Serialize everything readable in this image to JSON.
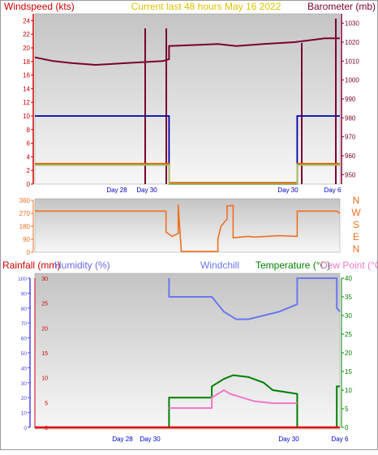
{
  "header": {
    "left_label": "Windspeed (kts)",
    "center_label": "Current last 48 hours May 16 2022",
    "right_label": "Barometer (mb)"
  },
  "colors": {
    "wind_axis": "#cc0000",
    "baro_axis": "#7a0030",
    "title": "#e0c000",
    "plot_bg_top": "#c9c9c9",
    "plot_bg_bottom": "#f5f5f5",
    "x_tick_label": "#0000cc",
    "dir_color": "#f07020",
    "rain": "#e00000",
    "humidity": "#4a4ae8",
    "windchill": "#6a78f0",
    "temperature": "#008000",
    "dewpoint": "#f078c8"
  },
  "chart_data": [
    {
      "type": "line",
      "x_tick_labels": [
        "Day 28",
        "Day 30",
        "Day 30",
        "Day 6"
      ],
      "y_left": {
        "label": "Windspeed (kts)",
        "ticks": [
          "0",
          "2",
          "4",
          "6",
          "8",
          "10",
          "12",
          "14",
          "16",
          "18",
          "20",
          "22",
          "24"
        ],
        "range": [
          0,
          25
        ]
      },
      "y_right": {
        "label": "Barometer (mb)",
        "ticks": [
          "950",
          "960",
          "970",
          "980",
          "990",
          "1000",
          "1010",
          "1020",
          "1030"
        ],
        "range": [
          945,
          1035
        ]
      },
      "series": [
        {
          "key": "barometer",
          "color": "#7a0030",
          "axis": "right",
          "points": [
            [
              0,
              1012
            ],
            [
              0.06,
              1010
            ],
            [
              0.12,
              1009
            ],
            [
              0.2,
              1008
            ],
            [
              0.3,
              1009
            ],
            [
              0.42,
              1010
            ],
            [
              0.44,
              1011
            ],
            [
              0.44,
              1018
            ],
            [
              0.6,
              1019
            ],
            [
              0.66,
              1018
            ],
            [
              0.75,
              1019
            ],
            [
              0.85,
              1020
            ],
            [
              0.95,
              1022
            ],
            [
              1.0,
              1022
            ]
          ]
        },
        {
          "key": "wind_blue",
          "color": "#0000aa",
          "axis": "left",
          "points": [
            [
              0,
              10
            ],
            [
              0.44,
              10
            ],
            [
              0.44,
              0
            ],
            [
              0.86,
              0
            ],
            [
              0.86,
              10
            ],
            [
              1.0,
              10
            ]
          ]
        },
        {
          "key": "wind_red",
          "color": "#e06000",
          "axis": "left",
          "points": [
            [
              0,
              3
            ],
            [
              0.44,
              3
            ],
            [
              0.44,
              0.2
            ],
            [
              0.86,
              0.2
            ],
            [
              0.86,
              3
            ],
            [
              1.0,
              3
            ]
          ]
        },
        {
          "key": "wind_green",
          "color": "#a0c060",
          "axis": "left",
          "points": [
            [
              0,
              2.8
            ],
            [
              0.44,
              2.8
            ],
            [
              0.44,
              0
            ],
            [
              0.86,
              0
            ],
            [
              0.86,
              2.8
            ],
            [
              1.0,
              2.8
            ]
          ]
        }
      ]
    },
    {
      "type": "line",
      "y_left": {
        "ticks": [
          "0",
          "90",
          "180",
          "270",
          "360"
        ],
        "range": [
          0,
          360
        ]
      },
      "y_right_labels": [
        "N",
        "W",
        "S",
        "E",
        "N"
      ],
      "series": [
        {
          "key": "wind_direction",
          "color": "#f07020",
          "points": [
            [
              0,
              285
            ],
            [
              0.43,
              285
            ],
            [
              0.43,
              140
            ],
            [
              0.45,
              110
            ],
            [
              0.47,
              130
            ],
            [
              0.47,
              330
            ],
            [
              0.48,
              5
            ],
            [
              0.51,
              5
            ],
            [
              0.55,
              5
            ],
            [
              0.6,
              5
            ],
            [
              0.6,
              90
            ],
            [
              0.61,
              180
            ],
            [
              0.63,
              230
            ],
            [
              0.63,
              320
            ],
            [
              0.65,
              325
            ],
            [
              0.65,
              100
            ],
            [
              0.7,
              110
            ],
            [
              0.72,
              105
            ],
            [
              0.8,
              115
            ],
            [
              0.86,
              110
            ],
            [
              0.86,
              285
            ],
            [
              0.99,
              285
            ],
            [
              1.0,
              270
            ]
          ]
        }
      ]
    },
    {
      "type": "line",
      "x_tick_labels": [
        "Day 28",
        "Day 30",
        "Day 30",
        "Day 6"
      ],
      "labels": {
        "rainfall": "Rainfall (mm)",
        "humidity": "Humidity (%)",
        "windchill": "Windchill",
        "temperature": "Temperature (°C)",
        "dewpoint": "Dew Point (°C)"
      },
      "y_left_rain": {
        "ticks": [
          "0",
          "5",
          "10",
          "15",
          "20",
          "25",
          "30"
        ],
        "range": [
          0,
          30
        ]
      },
      "y_left_hum": {
        "ticks": [
          "0",
          "10",
          "20",
          "30",
          "40",
          "50",
          "60",
          "70",
          "80",
          "90",
          "100"
        ],
        "range": [
          0,
          100
        ]
      },
      "y_right_temp": {
        "ticks": [
          "0",
          "5",
          "10",
          "15",
          "20",
          "25",
          "30",
          "35",
          "40"
        ],
        "range": [
          0,
          40
        ]
      },
      "series": [
        {
          "key": "windchill",
          "color": "#6a78f0",
          "points": [
            [
              0.44,
              40
            ],
            [
              0.44,
              35
            ],
            [
              0.58,
              35
            ],
            [
              0.62,
              31
            ],
            [
              0.66,
              29
            ],
            [
              0.7,
              29
            ],
            [
              0.75,
              30
            ],
            [
              0.8,
              31
            ],
            [
              0.86,
              33
            ],
            [
              0.86,
              40
            ],
            [
              0.99,
              40
            ],
            [
              0.99,
              32
            ],
            [
              1.0,
              31
            ]
          ]
        },
        {
          "key": "temperature",
          "color": "#008000",
          "points": [
            [
              0.44,
              0
            ],
            [
              0.44,
              8
            ],
            [
              0.58,
              8
            ],
            [
              0.58,
              11
            ],
            [
              0.62,
              13
            ],
            [
              0.65,
              14
            ],
            [
              0.7,
              13.5
            ],
            [
              0.75,
              12
            ],
            [
              0.78,
              10
            ],
            [
              0.86,
              9
            ],
            [
              0.86,
              0
            ],
            [
              0.99,
              0
            ],
            [
              0.99,
              11
            ],
            [
              1.0,
              11
            ]
          ]
        },
        {
          "key": "dewpoint",
          "color": "#f078c8",
          "points": [
            [
              0.44,
              5.2
            ],
            [
              0.58,
              5.2
            ],
            [
              0.58,
              8
            ],
            [
              0.62,
              10
            ],
            [
              0.64,
              9
            ],
            [
              0.68,
              8
            ],
            [
              0.72,
              7
            ],
            [
              0.78,
              6.5
            ],
            [
              0.86,
              6.5
            ]
          ]
        },
        {
          "key": "rainfall",
          "color": "#e00000",
          "points": [
            [
              0,
              0
            ],
            [
              1.0,
              0
            ]
          ]
        }
      ]
    }
  ]
}
